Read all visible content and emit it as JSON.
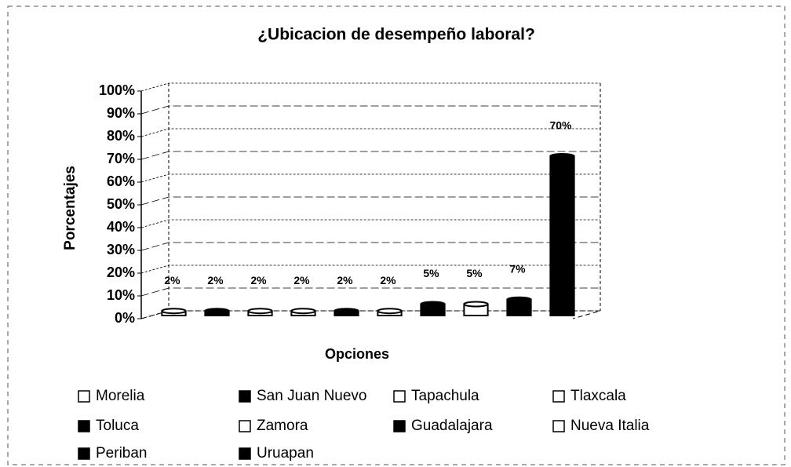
{
  "chart_data": {
    "type": "bar3d",
    "title": "¿Ubicacion de desempeño laboral?",
    "xlabel": "Opciones",
    "ylabel": "Porcentajes",
    "categories": [
      "Morelia",
      "San Juan Nuevo",
      "Tapachula",
      "Tlaxcala",
      "Toluca",
      "Zamora",
      "Guadalajara",
      "Nueva Italia",
      "Periban",
      "Uruapan"
    ],
    "values": [
      2,
      2,
      2,
      2,
      2,
      2,
      5,
      5,
      7,
      70
    ],
    "value_labels": [
      "2%",
      "2%",
      "2%",
      "2%",
      "2%",
      "2%",
      "5%",
      "5%",
      "7%",
      "70%"
    ],
    "colors": [
      "#ffffff",
      "#000000",
      "#ffffff",
      "#ffffff",
      "#000000",
      "#ffffff",
      "#000000",
      "#ffffff",
      "#000000",
      "#000000"
    ],
    "ylim": [
      0,
      100
    ],
    "yticks": [
      {
        "value": 0,
        "label": "0%"
      },
      {
        "value": 10,
        "label": "10%"
      },
      {
        "value": 20,
        "label": "20%"
      },
      {
        "value": 30,
        "label": "30%"
      },
      {
        "value": 40,
        "label": "40%"
      },
      {
        "value": 50,
        "label": "50%"
      },
      {
        "value": 60,
        "label": "60%"
      },
      {
        "value": 70,
        "label": "70%"
      },
      {
        "value": 80,
        "label": "80%"
      },
      {
        "value": 90,
        "label": "90%"
      },
      {
        "value": 100,
        "label": "100%"
      }
    ],
    "grid": true,
    "legend": "bottom"
  }
}
